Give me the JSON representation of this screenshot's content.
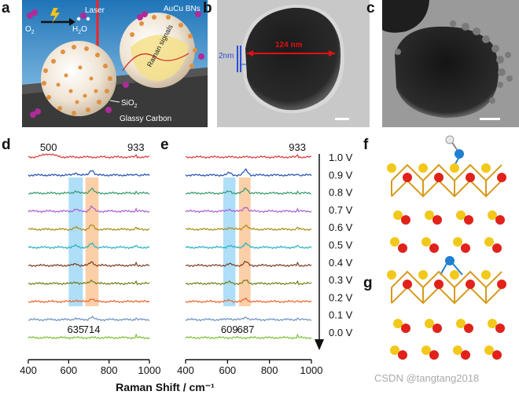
{
  "panel_labels": {
    "a": "a",
    "b": "b",
    "c": "c",
    "d": "d",
    "e": "e",
    "f": "f",
    "g": "g"
  },
  "panel_a": {
    "o2": "O",
    "o2_sub": "2",
    "h2o_h": "H",
    "h2o_sub": "2",
    "h2o_o": "O",
    "laser": "Laser",
    "bns": "AuCu BNs",
    "raman": "Raman signals",
    "sio2": "SiO",
    "sio2_sub": "2",
    "substrate": "Glassy Carbon"
  },
  "panel_b": {
    "diameter": "124 nm",
    "shell": "2nm"
  },
  "panel_c": {},
  "voltages": [
    "1.0 V",
    "0.9 V",
    "0.8 V",
    "0.7 V",
    "0.6 V",
    "0.5 V",
    "0.4 V",
    "0.3 V",
    "0.2 V",
    "0.1 V",
    "0.0 V"
  ],
  "series_colors": [
    "#d83a3a",
    "#1e4fb0",
    "#2f9a6a",
    "#a85fd0",
    "#a98a10",
    "#25b0c0",
    "#7d3b20",
    "#6d7d12",
    "#e8642a",
    "#6b8fc0",
    "#7cc032"
  ],
  "x_axis_label": "Raman Shift / cm⁻¹",
  "watermark": "CSDN @tangtang2018",
  "chart_data": [
    {
      "type": "line",
      "panel": "d",
      "x_range": [
        400,
        1000
      ],
      "x_ticks": [
        "400",
        "600",
        "800",
        "1000"
      ],
      "series_names": [
        "1.0 V",
        "0.9 V",
        "0.8 V",
        "0.7 V",
        "0.6 V",
        "0.5 V",
        "0.4 V",
        "0.3 V",
        "0.2 V",
        "0.1 V",
        "0.0 V"
      ],
      "peaks": [
        {
          "x": 635,
          "label": "635"
        },
        {
          "x": 714,
          "label": "714"
        }
      ],
      "annotations": [
        {
          "x": 500,
          "label": "500"
        },
        {
          "x": 933,
          "label": "933"
        }
      ],
      "highlight_bands": [
        {
          "from": 600,
          "to": 670,
          "color": "#6ec3f2"
        },
        {
          "from": 683,
          "to": 748,
          "color": "#f8a860"
        }
      ]
    },
    {
      "type": "line",
      "panel": "e",
      "x_range": [
        400,
        1000
      ],
      "x_ticks": [
        "400",
        "600",
        "800",
        "1000"
      ],
      "series_names": [
        "1.0 V",
        "0.9 V",
        "0.8 V",
        "0.7 V",
        "0.6 V",
        "0.5 V",
        "0.4 V",
        "0.3 V",
        "0.2 V",
        "0.1 V",
        "0.0 V"
      ],
      "peaks": [
        {
          "x": 609,
          "label": "609"
        },
        {
          "x": 687,
          "label": "687"
        }
      ],
      "annotations": [
        {
          "x": 933,
          "label": "933"
        }
      ],
      "highlight_bands": [
        {
          "from": 580,
          "to": 638,
          "color": "#6ec3f2"
        },
        {
          "from": 655,
          "to": 710,
          "color": "#f8a860"
        }
      ]
    }
  ]
}
